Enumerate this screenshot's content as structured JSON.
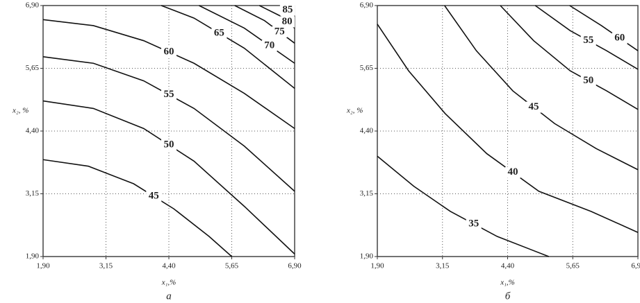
{
  "chart_data": [
    {
      "type": "contour",
      "caption": "а",
      "xlabel": "x₁,%",
      "ylabel": "x₂, %",
      "xlim": [
        1.9,
        6.9
      ],
      "ylim": [
        1.9,
        6.9
      ],
      "grid": true,
      "line_color": "#111111",
      "xticks": [
        {
          "value": 1.9,
          "label": "1,90"
        },
        {
          "value": 3.15,
          "label": "3,15"
        },
        {
          "value": 4.4,
          "label": "4,40"
        },
        {
          "value": 5.65,
          "label": "5,65"
        },
        {
          "value": 6.9,
          "label": "6,90"
        }
      ],
      "yticks": [
        {
          "value": 1.9,
          "label": "1,90"
        },
        {
          "value": 3.15,
          "label": "3,15"
        },
        {
          "value": 4.4,
          "label": "4,40"
        },
        {
          "value": 5.65,
          "label": "5,65"
        },
        {
          "value": 6.9,
          "label": "6,90"
        }
      ],
      "series": [
        {
          "level": 45,
          "x": [
            1.9,
            2.8,
            3.7,
            4.5,
            5.2,
            5.65
          ],
          "y": [
            3.83,
            3.7,
            3.35,
            2.85,
            2.3,
            1.9
          ]
        },
        {
          "level": 50,
          "x": [
            1.9,
            2.9,
            3.9,
            4.9,
            5.9,
            6.9
          ],
          "y": [
            5.0,
            4.85,
            4.45,
            3.8,
            2.9,
            1.95
          ]
        },
        {
          "level": 55,
          "x": [
            1.9,
            2.9,
            3.9,
            4.9,
            5.9,
            6.9
          ],
          "y": [
            5.88,
            5.75,
            5.4,
            4.85,
            4.1,
            3.2
          ]
        },
        {
          "level": 60,
          "x": [
            1.9,
            2.9,
            3.9,
            4.9,
            5.9,
            6.9
          ],
          "y": [
            6.62,
            6.5,
            6.2,
            5.75,
            5.15,
            4.45
          ]
        },
        {
          "level": 65,
          "x": [
            4.25,
            4.9,
            5.9,
            6.9
          ],
          "y": [
            6.9,
            6.65,
            6.05,
            5.25
          ]
        },
        {
          "level": 70,
          "x": [
            5.0,
            5.9,
            6.9
          ],
          "y": [
            6.9,
            6.45,
            5.75
          ]
        },
        {
          "level": 75,
          "x": [
            5.71,
            6.3,
            6.9
          ],
          "y": [
            6.9,
            6.6,
            6.15
          ]
        },
        {
          "level": 80,
          "x": [
            6.2,
            6.6,
            6.9
          ],
          "y": [
            6.9,
            6.7,
            6.45
          ]
        },
        {
          "level": 85,
          "x": [
            6.62,
            6.9
          ],
          "y": [
            6.9,
            6.72
          ]
        }
      ]
    },
    {
      "type": "contour",
      "caption": "б",
      "xlabel": "x₁,%",
      "ylabel": "x₂, %",
      "xlim": [
        1.9,
        6.9
      ],
      "ylim": [
        1.9,
        6.9
      ],
      "grid": true,
      "line_color": "#111111",
      "xticks": [
        {
          "value": 1.9,
          "label": "1,90"
        },
        {
          "value": 3.15,
          "label": "3,15"
        },
        {
          "value": 4.4,
          "label": "4,40"
        },
        {
          "value": 5.65,
          "label": "5,65"
        },
        {
          "value": 6.9,
          "label": "6,90"
        }
      ],
      "yticks": [
        {
          "value": 1.9,
          "label": "1,90"
        },
        {
          "value": 3.15,
          "label": "3,15"
        },
        {
          "value": 4.4,
          "label": "4,40"
        },
        {
          "value": 5.65,
          "label": "5,65"
        },
        {
          "value": 6.9,
          "label": "6,90"
        }
      ],
      "series": [
        {
          "level": 35,
          "x": [
            1.9,
            2.6,
            3.3,
            4.2,
            5.19
          ],
          "y": [
            3.9,
            3.3,
            2.8,
            2.3,
            1.9
          ]
        },
        {
          "level": 40,
          "x": [
            1.9,
            2.5,
            3.2,
            4.0,
            5.0,
            6.0,
            6.9
          ],
          "y": [
            6.53,
            5.6,
            4.75,
            3.95,
            3.2,
            2.8,
            2.38
          ]
        },
        {
          "level": 45,
          "x": [
            3.19,
            3.8,
            4.5,
            5.3,
            6.1,
            6.9
          ],
          "y": [
            6.9,
            6.0,
            5.2,
            4.55,
            4.05,
            3.63
          ]
        },
        {
          "level": 50,
          "x": [
            4.26,
            4.9,
            5.6,
            6.3,
            6.9
          ],
          "y": [
            6.9,
            6.2,
            5.6,
            5.2,
            4.83
          ]
        },
        {
          "level": 55,
          "x": [
            4.93,
            5.6,
            6.3,
            6.9
          ],
          "y": [
            6.9,
            6.4,
            6.0,
            5.63
          ]
        },
        {
          "level": 60,
          "x": [
            5.59,
            6.2,
            6.9
          ],
          "y": [
            6.9,
            6.5,
            6.0
          ]
        }
      ]
    }
  ]
}
